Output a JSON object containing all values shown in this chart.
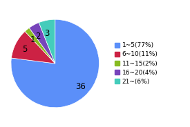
{
  "labels": [
    "1~5(77%)",
    "6~10(11%)",
    "11~15(2%)",
    "16~20(4%)",
    "21~(6%)"
  ],
  "values": [
    77,
    11,
    2,
    4,
    6
  ],
  "slice_labels": [
    "36",
    "5",
    "1",
    "2",
    "3"
  ],
  "colors": [
    "#5B8FF9",
    "#CC2244",
    "#88BB22",
    "#7744BB",
    "#44CCBB"
  ],
  "background_color": "#ffffff",
  "legend_fontsize": 6.5,
  "label_fontsize": 8.5,
  "startangle": 90
}
